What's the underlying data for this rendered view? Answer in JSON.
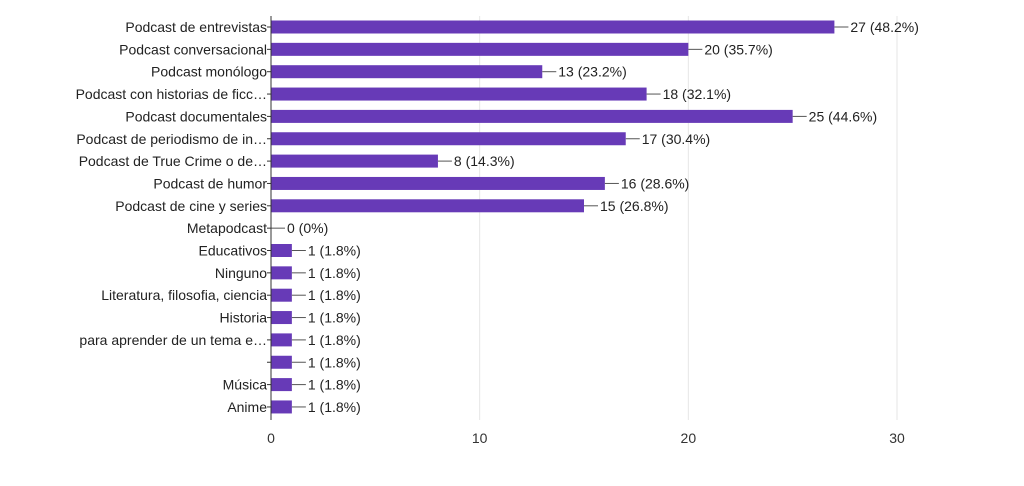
{
  "chart_data": {
    "type": "bar",
    "orientation": "horizontal",
    "title": "",
    "xlabel": "",
    "ylabel": "",
    "xlim": [
      0,
      30
    ],
    "x_ticks": [
      0,
      10,
      20,
      30
    ],
    "x_tick_labels": [
      "0",
      "10",
      "20",
      "30"
    ],
    "grid": true,
    "bar_color": "#673ab7",
    "categories": [
      "Podcast de entrevistas",
      "Podcast conversacional",
      "Podcast monólogo",
      "Podcast con historias de ficc…",
      "Podcast documentales",
      "Podcast de periodismo de in…",
      "Podcast de True Crime o de…",
      "Podcast de humor",
      "Podcast de cine y series",
      "Metapodcast",
      "Educativos",
      "Ninguno",
      "Literatura, filosofia, ciencia",
      "Historia",
      "para aprender de un tema e…",
      "",
      "Música",
      "Anime"
    ],
    "values": [
      27,
      20,
      13,
      18,
      25,
      17,
      8,
      16,
      15,
      0,
      1,
      1,
      1,
      1,
      1,
      1,
      1,
      1
    ],
    "data_labels": [
      "27 (48.2%)",
      "20 (35.7%)",
      "13 (23.2%)",
      "18 (32.1%)",
      "25 (44.6%)",
      "17 (30.4%)",
      "8 (14.3%)",
      "16 (28.6%)",
      "15 (26.8%)",
      "0 (0%)",
      "1 (1.8%)",
      "1 (1.8%)",
      "1 (1.8%)",
      "1 (1.8%)",
      "1 (1.8%)",
      "1 (1.8%)",
      "1 (1.8%)",
      "1 (1.8%)"
    ]
  }
}
